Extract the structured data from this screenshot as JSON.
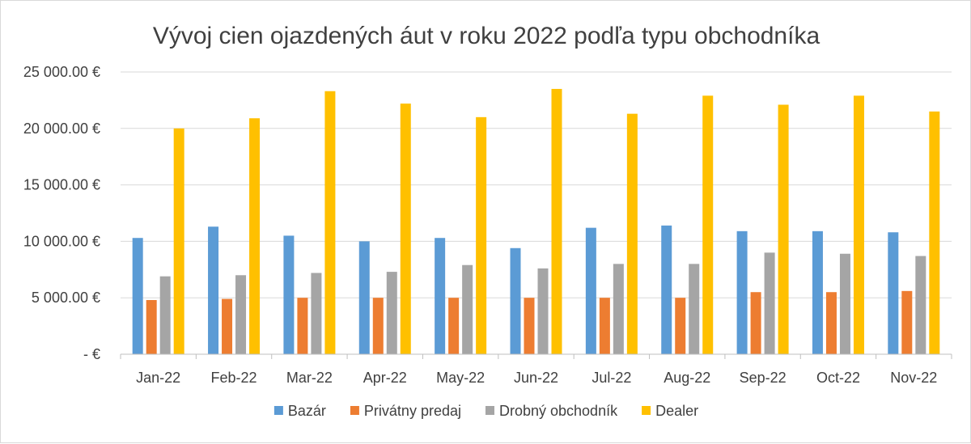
{
  "chart_data": {
    "type": "bar",
    "title": "Vývoj cien ojazdených áut v roku 2022 podľa typu obchodníka",
    "xlabel": "",
    "ylabel": "",
    "ylim": [
      0,
      25000
    ],
    "y_ticks": [
      {
        "value": 0,
        "label": "-  €"
      },
      {
        "value": 5000,
        "label": "5 000.00 €"
      },
      {
        "value": 10000,
        "label": "10 000.00 €"
      },
      {
        "value": 15000,
        "label": "15 000.00 €"
      },
      {
        "value": 20000,
        "label": "20 000.00 €"
      },
      {
        "value": 25000,
        "label": "25 000.00 €"
      }
    ],
    "grid": true,
    "legend_position": "bottom",
    "categories": [
      "Jan-22",
      "Feb-22",
      "Mar-22",
      "Apr-22",
      "May-22",
      "Jun-22",
      "Jul-22",
      "Aug-22",
      "Sep-22",
      "Oct-22",
      "Nov-22"
    ],
    "series": [
      {
        "name": "Bazár",
        "color": "#5b9bd5",
        "values": [
          10300,
          11300,
          10500,
          10000,
          10300,
          9400,
          11200,
          11400,
          10900,
          10900,
          10800
        ]
      },
      {
        "name": "Privátny predaj",
        "color": "#ed7d31",
        "values": [
          4800,
          4900,
          5000,
          5000,
          5000,
          5000,
          5000,
          5000,
          5500,
          5500,
          5600
        ]
      },
      {
        "name": "Drobný obchodník",
        "color": "#a5a5a5",
        "values": [
          6900,
          7000,
          7200,
          7300,
          7900,
          7600,
          8000,
          8000,
          9000,
          8900,
          8700
        ]
      },
      {
        "name": "Dealer",
        "color": "#ffc000",
        "values": [
          20000,
          20900,
          23300,
          22200,
          21000,
          23500,
          21300,
          22900,
          22100,
          22900,
          21500
        ]
      }
    ]
  },
  "style": {
    "grid_color": "#d9d9d9",
    "axis_color": "#bfbfbf"
  }
}
